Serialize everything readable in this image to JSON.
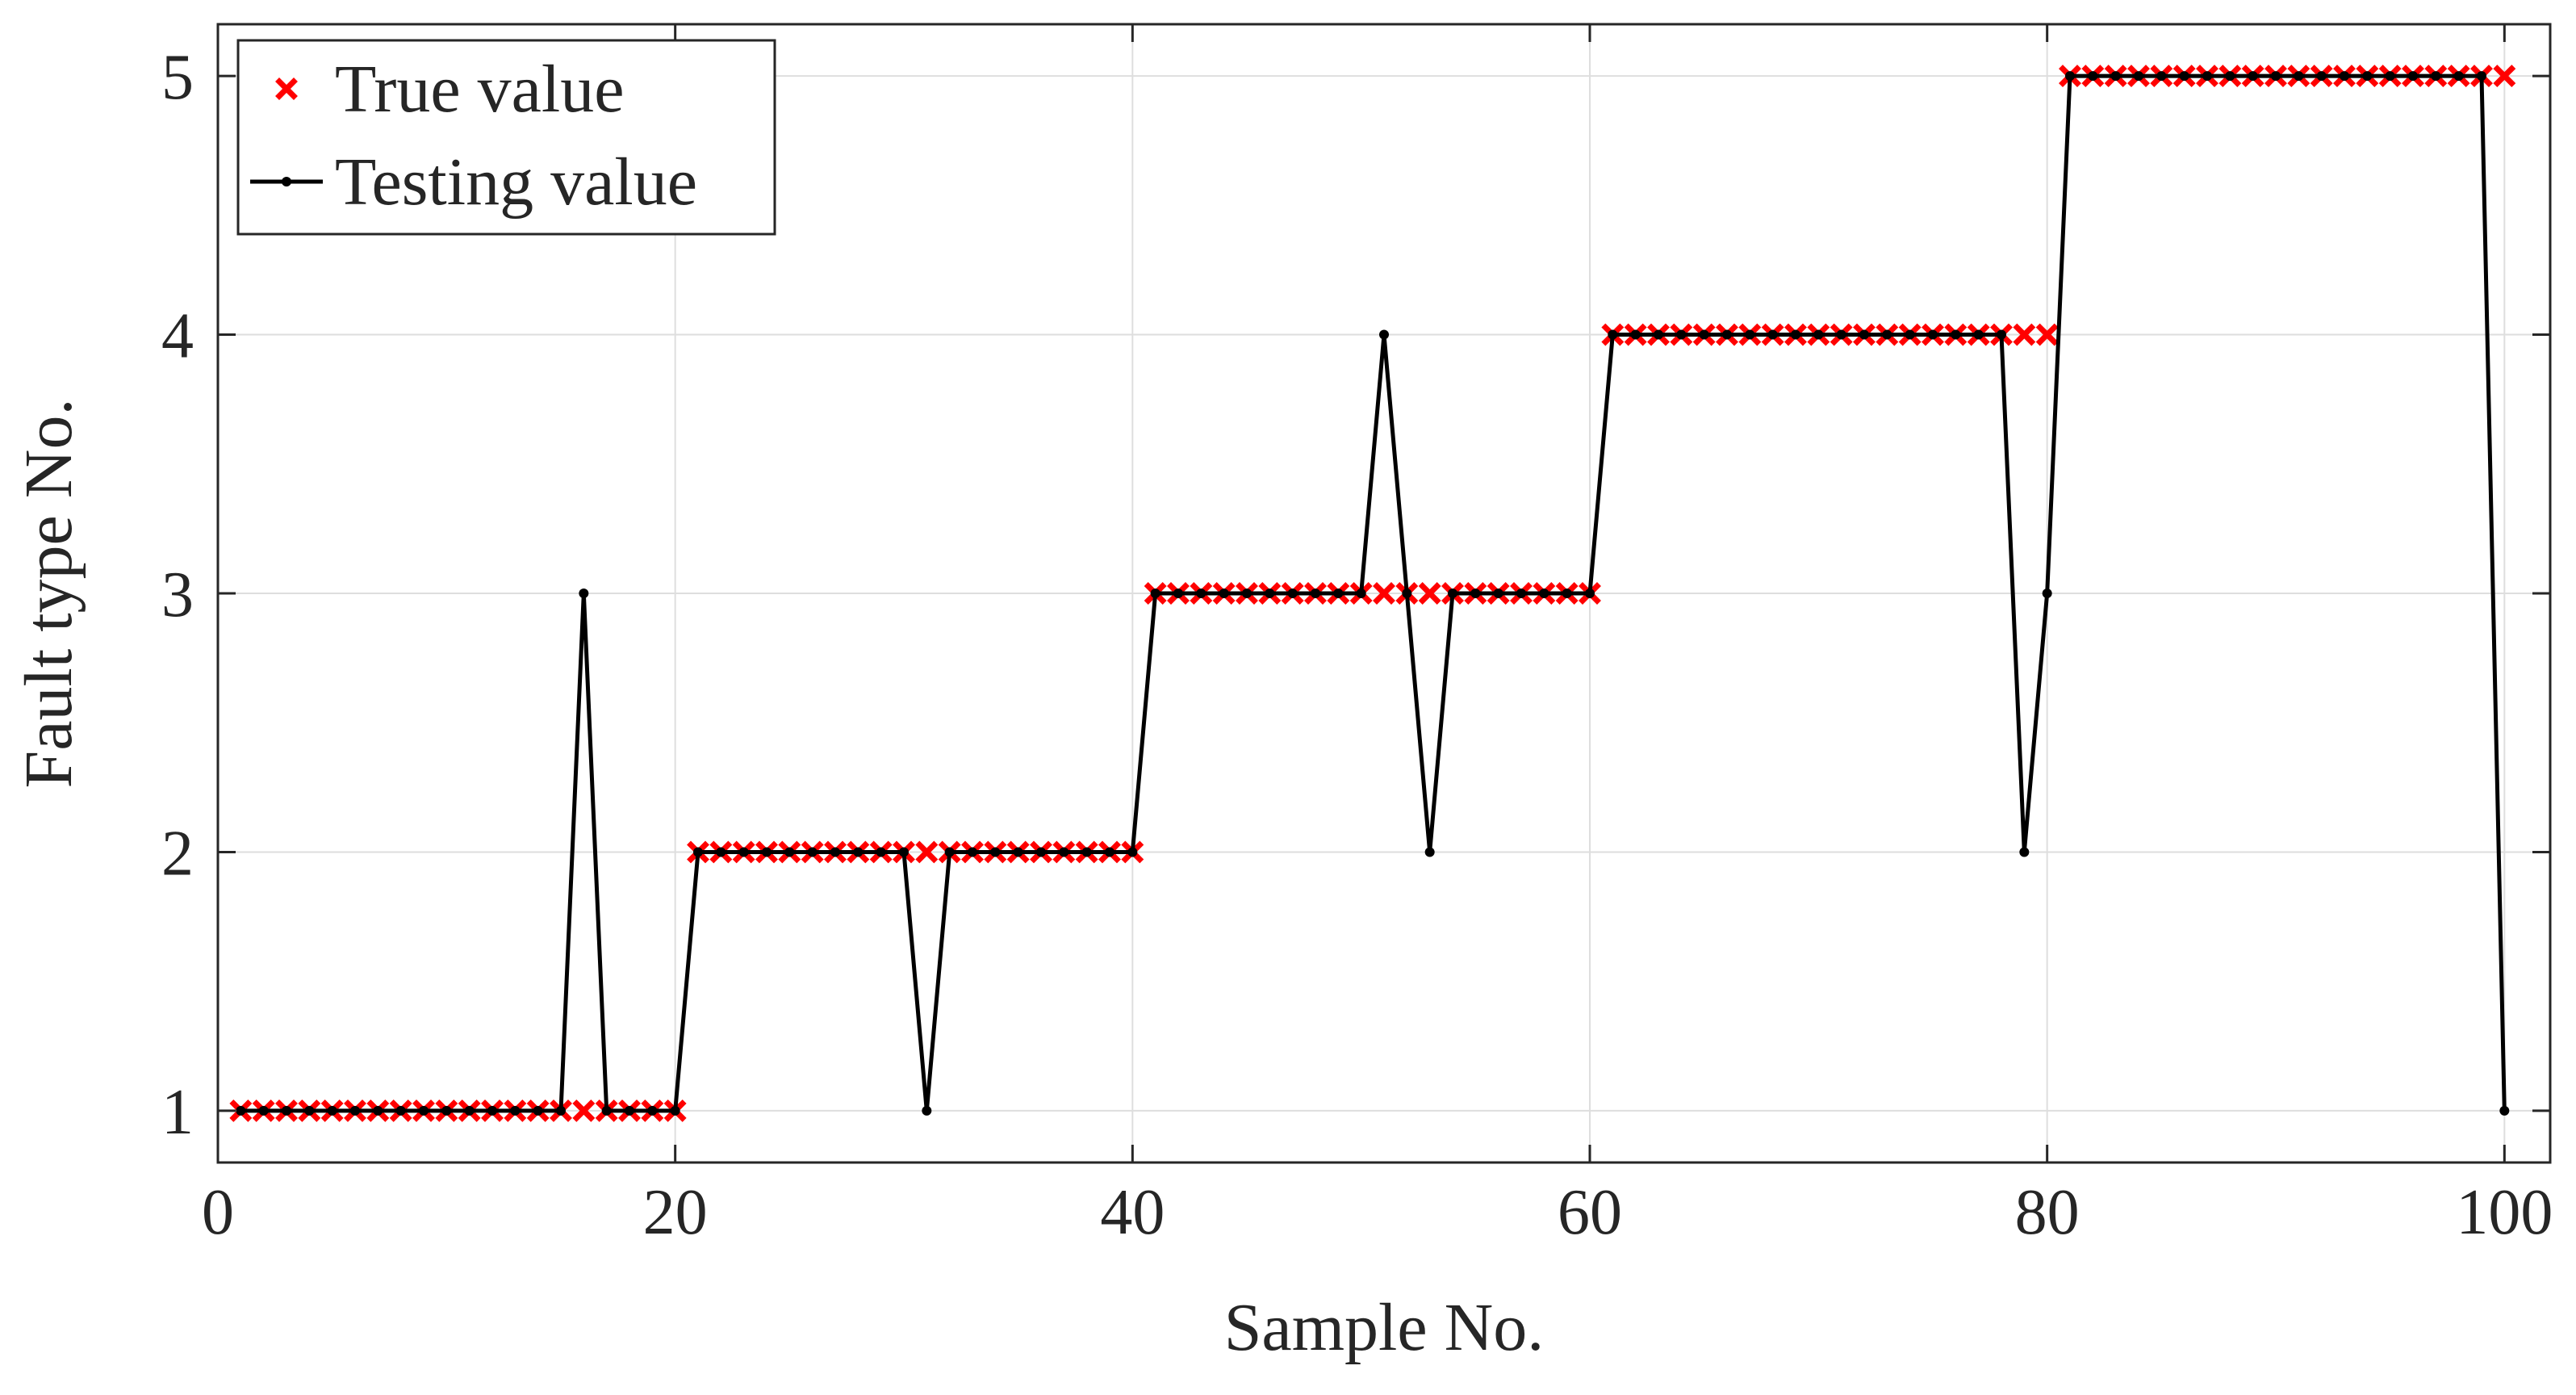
{
  "chart_data": {
    "type": "line",
    "title": "",
    "xlabel": "Sample No.",
    "ylabel": "Fault type No.",
    "xlim": [
      0,
      102
    ],
    "ylim": [
      0.8,
      5.2
    ],
    "xticks": [
      0,
      20,
      40,
      60,
      80,
      100
    ],
    "yticks": [
      1,
      2,
      3,
      4,
      5
    ],
    "grid": true,
    "legend_position": "top-left",
    "x": [
      1,
      2,
      3,
      4,
      5,
      6,
      7,
      8,
      9,
      10,
      11,
      12,
      13,
      14,
      15,
      16,
      17,
      18,
      19,
      20,
      21,
      22,
      23,
      24,
      25,
      26,
      27,
      28,
      29,
      30,
      31,
      32,
      33,
      34,
      35,
      36,
      37,
      38,
      39,
      40,
      41,
      42,
      43,
      44,
      45,
      46,
      47,
      48,
      49,
      50,
      51,
      52,
      53,
      54,
      55,
      56,
      57,
      58,
      59,
      60,
      61,
      62,
      63,
      64,
      65,
      66,
      67,
      68,
      69,
      70,
      71,
      72,
      73,
      74,
      75,
      76,
      77,
      78,
      79,
      80,
      81,
      82,
      83,
      84,
      85,
      86,
      87,
      88,
      89,
      90,
      91,
      92,
      93,
      94,
      95,
      96,
      97,
      98,
      99,
      100
    ],
    "series": [
      {
        "name": "True value",
        "style": "marker",
        "marker": "x",
        "color": "#ff0000",
        "values": [
          1,
          1,
          1,
          1,
          1,
          1,
          1,
          1,
          1,
          1,
          1,
          1,
          1,
          1,
          1,
          1,
          1,
          1,
          1,
          1,
          2,
          2,
          2,
          2,
          2,
          2,
          2,
          2,
          2,
          2,
          2,
          2,
          2,
          2,
          2,
          2,
          2,
          2,
          2,
          2,
          3,
          3,
          3,
          3,
          3,
          3,
          3,
          3,
          3,
          3,
          3,
          3,
          3,
          3,
          3,
          3,
          3,
          3,
          3,
          3,
          4,
          4,
          4,
          4,
          4,
          4,
          4,
          4,
          4,
          4,
          4,
          4,
          4,
          4,
          4,
          4,
          4,
          4,
          4,
          4,
          5,
          5,
          5,
          5,
          5,
          5,
          5,
          5,
          5,
          5,
          5,
          5,
          5,
          5,
          5,
          5,
          5,
          5,
          5,
          5
        ]
      },
      {
        "name": "Testing value",
        "style": "line-dot",
        "color": "#000000",
        "values": [
          1,
          1,
          1,
          1,
          1,
          1,
          1,
          1,
          1,
          1,
          1,
          1,
          1,
          1,
          1,
          3,
          1,
          1,
          1,
          1,
          2,
          2,
          2,
          2,
          2,
          2,
          2,
          2,
          2,
          2,
          1,
          2,
          2,
          2,
          2,
          2,
          2,
          2,
          2,
          2,
          3,
          3,
          3,
          3,
          3,
          3,
          3,
          3,
          3,
          3,
          4,
          3,
          2,
          3,
          3,
          3,
          3,
          3,
          3,
          3,
          4,
          4,
          4,
          4,
          4,
          4,
          4,
          4,
          4,
          4,
          4,
          4,
          4,
          4,
          4,
          4,
          4,
          4,
          2,
          3,
          5,
          5,
          5,
          5,
          5,
          5,
          5,
          5,
          5,
          5,
          5,
          5,
          5,
          5,
          5,
          5,
          5,
          5,
          5,
          1
        ]
      }
    ]
  }
}
